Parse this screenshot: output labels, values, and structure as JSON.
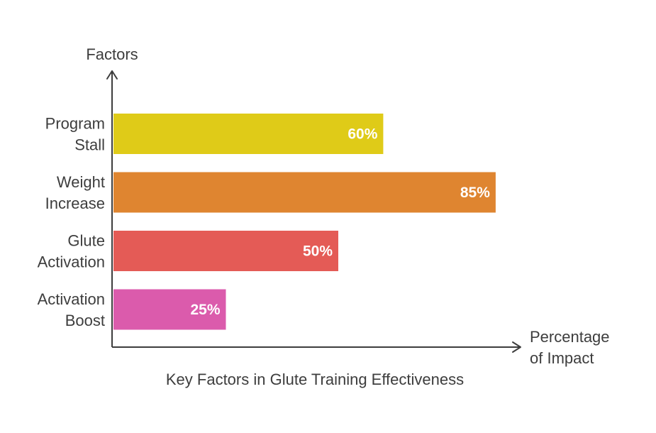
{
  "chart_data": {
    "type": "bar",
    "orientation": "horizontal",
    "title": "",
    "caption": "Key Factors in Glute Training Effectiveness",
    "ylabel": "Factors",
    "xlabel": [
      "Percentage",
      "of Impact"
    ],
    "categories": [
      [
        "Program",
        "Stall"
      ],
      [
        "Weight",
        "Increase"
      ],
      [
        "Glute",
        "Activation"
      ],
      [
        "Activation",
        "Boost"
      ]
    ],
    "values": [
      60,
      85,
      50,
      25
    ],
    "value_labels": [
      "60%",
      "85%",
      "50%",
      "25%"
    ],
    "colors": [
      "#dfcb18",
      "#df8530",
      "#e45b56",
      "#db5bac"
    ],
    "xlim": [
      0,
      100
    ],
    "grid": false,
    "legend": "none"
  }
}
